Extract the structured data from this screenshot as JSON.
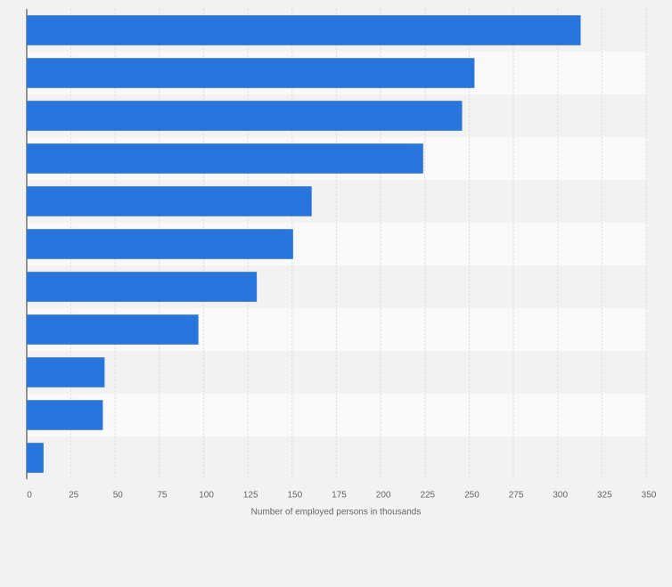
{
  "chart_data": {
    "type": "hbar",
    "categories": [
      null,
      null,
      null,
      null,
      null,
      null,
      null,
      null,
      null,
      null,
      null
    ],
    "values": [
      313,
      253,
      246,
      224,
      161,
      150.5,
      130,
      97,
      44,
      43,
      9.5
    ],
    "color": "#2876dd",
    "xlim": [
      0,
      350
    ],
    "xticks": [
      0,
      25,
      50,
      75,
      100,
      125,
      150,
      175,
      200,
      225,
      250,
      275,
      300,
      325,
      350
    ],
    "x_label": "Number of employed persons in thousands",
    "grid": true
  }
}
